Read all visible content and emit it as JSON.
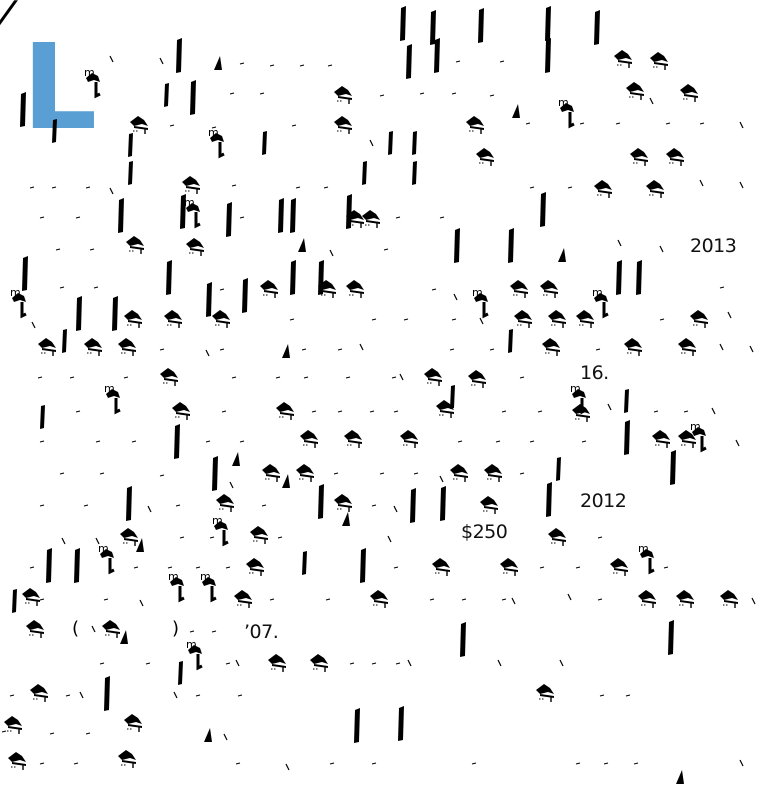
{
  "document": {
    "drop_cap": "L",
    "fragments": {
      "year_2013": "2013",
      "number_16": "16.",
      "year_2012": "2012",
      "price_250": "$250",
      "year_07": "’07."
    }
  },
  "colors": {
    "drop_cap": "#5a9fd4",
    "ink": "#000000",
    "background": "#ffffff"
  }
}
